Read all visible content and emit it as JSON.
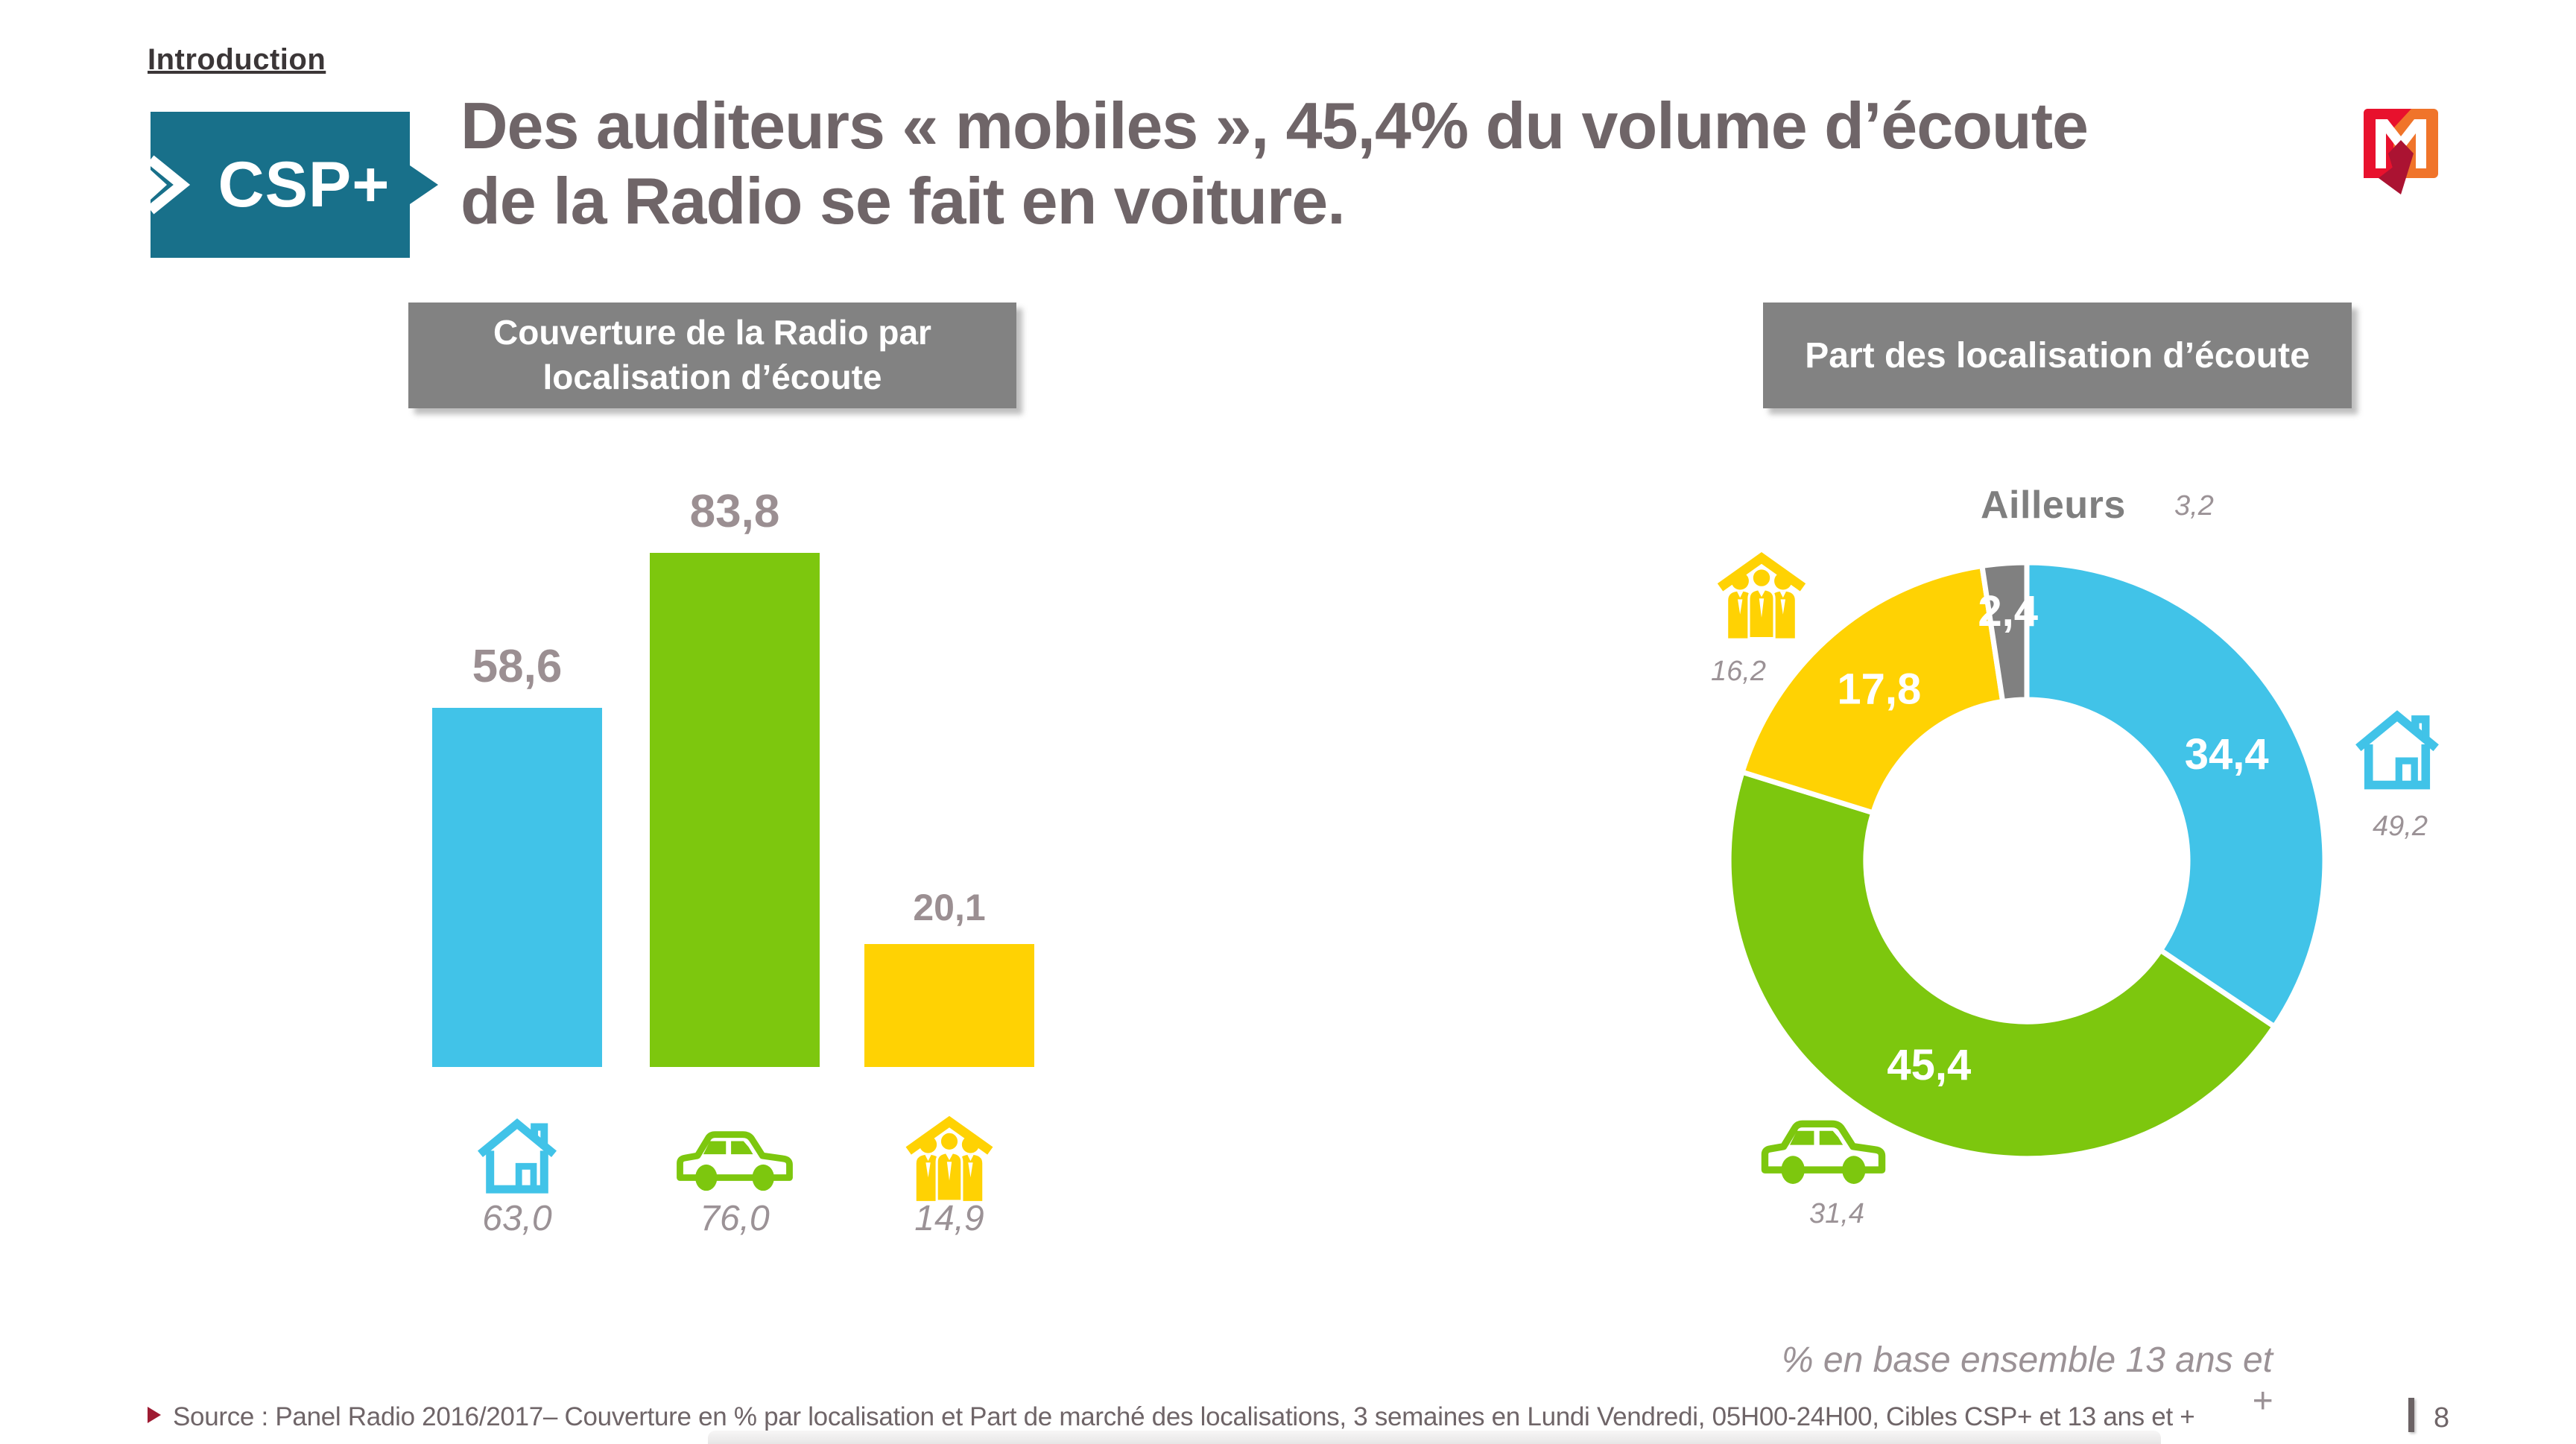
{
  "slide": {
    "section": "Introduction",
    "audience_tag": "CSP+",
    "title_lines": [
      "Des auditeurs « mobiles », 45,4% du volume d’écoute",
      "de la Radio se fait en voiture."
    ],
    "base_note": "% en base ensemble 13 ans et +",
    "source_note": "Source : Panel Radio 2016/2017– Couverture en % par localisation et Part de marché des localisations, 3 semaines en Lundi Vendredi, 05H00-24H00, Cibles CSP+ et 13 ans et +",
    "page_number": "8",
    "logo": "mediametrie-m-logo"
  },
  "colors": {
    "teal": "#18708A",
    "blue": "#41C3E8",
    "green": "#7DC70E",
    "yellow": "#FFD203",
    "gray": "#808080",
    "title_gray": "#6F6568",
    "value_gray": "#9B8F92",
    "italic_gray": "#9B9296",
    "logo_red": "#E8112D",
    "logo_orange": "#F0742A",
    "logo_darkred": "#AB1332",
    "footer_bullet_red": "#9E1B32"
  },
  "chart_data": [
    {
      "type": "bar",
      "title": "Couverture de la Radio par localisation d’écoute",
      "title_lines": [
        "Couverture de la Radio par",
        "localisation d’écoute"
      ],
      "categories": [
        "house",
        "car",
        "people-under-roof"
      ],
      "values": [
        58.6,
        83.8,
        20.1
      ],
      "value_labels": [
        "58,6",
        "83,8",
        "20,1"
      ],
      "footer_values": [
        63.0,
        76.0,
        14.9
      ],
      "footer_labels": [
        "63,0",
        "76,0",
        "14,9"
      ],
      "bar_colors": [
        "#41C3E8",
        "#7DC70E",
        "#FFD203"
      ],
      "icons": [
        "house-icon",
        "car-icon",
        "people-icon"
      ],
      "ylim": [
        0,
        100
      ],
      "grid": false,
      "legend_position": "none"
    },
    {
      "type": "pie",
      "subtype": "donut",
      "title": "Part des localisation d’écoute",
      "start_angle_deg": 0,
      "direction": "clockwise",
      "inner_radius_ratio": 0.54,
      "legend_position": "around",
      "segments": [
        {
          "category": "house",
          "value": 34.4,
          "value_label": "34,4",
          "color": "#41C3E8",
          "outside_label": "49,2",
          "icon": "house-icon"
        },
        {
          "category": "car",
          "value": 45.4,
          "value_label": "45,4",
          "color": "#7DC70E",
          "outside_label": "31,4",
          "icon": "car-icon"
        },
        {
          "category": "people-under-roof",
          "value": 17.8,
          "value_label": "17,8",
          "color": "#FFD203",
          "outside_label": "16,2",
          "icon": "people-icon"
        },
        {
          "category": "ailleurs",
          "value": 2.4,
          "value_label": "2,4",
          "color": "#808080",
          "outside_label": "3,2",
          "icon": null
        }
      ],
      "callout": {
        "label": "Ailleurs",
        "value_label": "3,2"
      }
    }
  ]
}
